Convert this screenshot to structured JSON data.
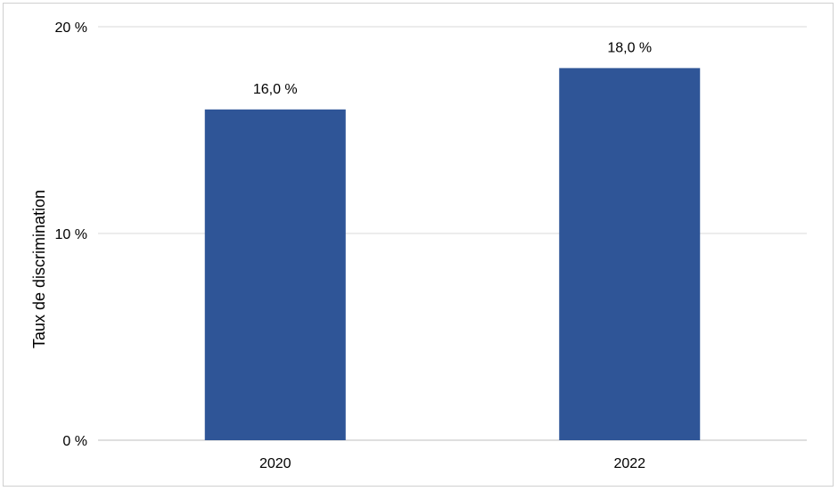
{
  "chart_data": {
    "type": "bar",
    "categories": [
      "2020",
      "2022"
    ],
    "values": [
      16.0,
      18.0
    ],
    "value_labels": [
      "16,0 %",
      "18,0 %"
    ],
    "title": "",
    "xlabel": "",
    "ylabel": "Taux de discrimination",
    "ylim": [
      0,
      20
    ],
    "yticks": [
      0,
      10,
      20
    ],
    "ytick_labels": [
      "0 %",
      "10 %",
      "20 %"
    ],
    "grid": "horizontal",
    "legend": "none",
    "colors": {
      "bar": "#2F5597",
      "grid": "#D9D9D9",
      "axis": "#BFBFBF"
    }
  }
}
